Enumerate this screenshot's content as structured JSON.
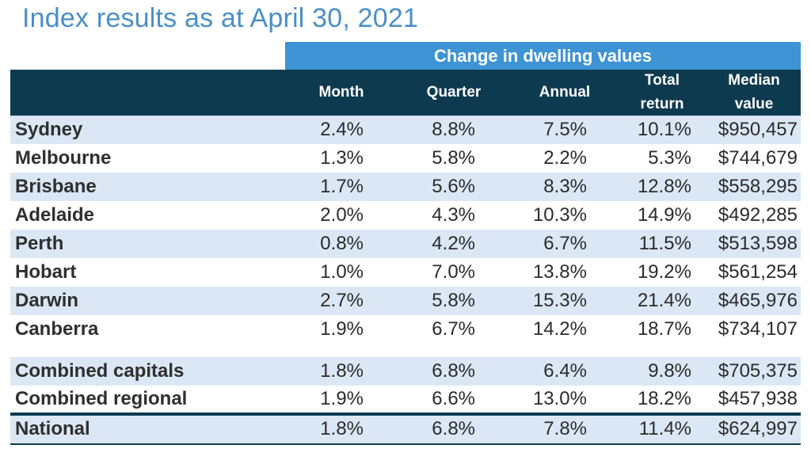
{
  "title": "Index results as at April 30, 2021",
  "band_label": "Change in dwelling values",
  "columns": {
    "month": "Month",
    "quarter": "Quarter",
    "annual": "Annual",
    "total_return_line1": "Total",
    "total_return_line2": "return",
    "median_line1": "Median",
    "median_line2": "value"
  },
  "rows": [
    {
      "city": "Sydney",
      "month": "2.4%",
      "quarter": "8.8%",
      "annual": "7.5%",
      "total_return": "10.1%",
      "median": "$950,457"
    },
    {
      "city": "Melbourne",
      "month": "1.3%",
      "quarter": "5.8%",
      "annual": "2.2%",
      "total_return": "5.3%",
      "median": "$744,679"
    },
    {
      "city": "Brisbane",
      "month": "1.7%",
      "quarter": "5.6%",
      "annual": "8.3%",
      "total_return": "12.8%",
      "median": "$558,295"
    },
    {
      "city": "Adelaide",
      "month": "2.0%",
      "quarter": "4.3%",
      "annual": "10.3%",
      "total_return": "14.9%",
      "median": "$492,285"
    },
    {
      "city": "Perth",
      "month": "0.8%",
      "quarter": "4.2%",
      "annual": "6.7%",
      "total_return": "11.5%",
      "median": "$513,598"
    },
    {
      "city": "Hobart",
      "month": "1.0%",
      "quarter": "7.0%",
      "annual": "13.8%",
      "total_return": "19.2%",
      "median": "$561,254"
    },
    {
      "city": "Darwin",
      "month": "2.7%",
      "quarter": "5.8%",
      "annual": "15.3%",
      "total_return": "21.4%",
      "median": "$465,976"
    },
    {
      "city": "Canberra",
      "month": "1.9%",
      "quarter": "6.7%",
      "annual": "14.2%",
      "total_return": "18.7%",
      "median": "$734,107"
    },
    {
      "city": "Combined capitals",
      "month": "1.8%",
      "quarter": "6.8%",
      "annual": "6.4%",
      "total_return": "9.8%",
      "median": "$705,375"
    },
    {
      "city": "Combined regional",
      "month": "1.9%",
      "quarter": "6.6%",
      "annual": "13.0%",
      "total_return": "18.2%",
      "median": "$457,938"
    },
    {
      "city": "National",
      "month": "1.8%",
      "quarter": "6.8%",
      "annual": "7.8%",
      "total_return": "11.4%",
      "median": "$624,997"
    }
  ],
  "colors": {
    "title": "#4a8fc8",
    "band": "#3d93d3",
    "header": "#0e3a50",
    "row_alt": "#dbe7f4"
  }
}
